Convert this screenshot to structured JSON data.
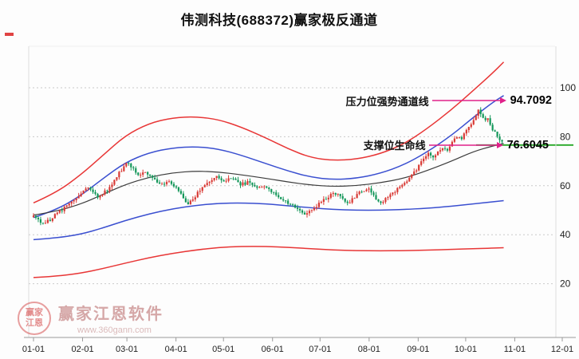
{
  "title": "伟测科技(688372)赢家极反通道",
  "annotations": {
    "resistance_label": "压力位强势通道线",
    "resistance_value": "94.7092",
    "support_label": "支撑位生命线",
    "support_value": "76.6045",
    "arrow_color": "#e0218a"
  },
  "watermark": {
    "brand": "赢家江恩软件",
    "url": "www.360gann.com",
    "logo_line1": "赢家",
    "logo_line2": "江恩"
  },
  "colors": {
    "up": "#d93a35",
    "down": "#14975a",
    "outer": "#e83636",
    "inner": "#3a4fd0",
    "life": "#3c3c3c",
    "support_line": "#27a827",
    "grid": "#c9c9c9",
    "axis": "#9a9a9a",
    "text": "#222222"
  },
  "chart_data": {
    "type": "candlestick",
    "title": "伟测科技(688372)赢家极反通道",
    "x_tick_labels": [
      "01-01",
      "02-01",
      "03-01",
      "04-01",
      "05-01",
      "06-01",
      "07-01",
      "08-01",
      "09-01",
      "10-01",
      "11-01",
      "12-01"
    ],
    "x_tick_cal_days": [
      0,
      31,
      59,
      90,
      120,
      151,
      181,
      212,
      243,
      273,
      304,
      334
    ],
    "x_axis_span": 334,
    "y_ticks": [
      100,
      80,
      60,
      40,
      20
    ],
    "ylim": [
      0,
      115
    ],
    "n_candles": 198,
    "cal_span": 296,
    "resistance_level": 94.7092,
    "support_level": 76.6045,
    "close_path": [
      [
        0,
        47.5
      ],
      [
        6,
        44.5
      ],
      [
        11,
        46.5
      ],
      [
        18,
        50
      ],
      [
        25,
        54
      ],
      [
        31,
        57.5
      ],
      [
        34,
        59
      ],
      [
        40,
        55.5
      ],
      [
        46,
        58
      ],
      [
        52,
        63
      ],
      [
        56,
        67
      ],
      [
        59,
        69.5
      ],
      [
        63,
        67
      ],
      [
        67,
        64.5
      ],
      [
        71,
        66
      ],
      [
        76,
        62.5
      ],
      [
        81,
        60.5
      ],
      [
        86,
        62
      ],
      [
        90,
        59.5
      ],
      [
        94,
        56
      ],
      [
        97,
        52.5
      ],
      [
        101,
        55
      ],
      [
        106,
        59
      ],
      [
        112,
        62.5
      ],
      [
        116,
        63.5
      ],
      [
        120,
        62
      ],
      [
        126,
        63
      ],
      [
        131,
        60.5
      ],
      [
        136,
        61.5
      ],
      [
        141,
        59
      ],
      [
        146,
        60
      ],
      [
        151,
        57
      ],
      [
        156,
        55
      ],
      [
        161,
        53
      ],
      [
        166,
        51
      ],
      [
        171,
        48.8
      ],
      [
        176,
        50.5
      ],
      [
        181,
        53
      ],
      [
        186,
        55.5
      ],
      [
        190,
        57.5
      ],
      [
        195,
        54.5
      ],
      [
        199,
        53
      ],
      [
        204,
        56
      ],
      [
        209,
        58.5
      ],
      [
        212,
        59
      ],
      [
        215,
        55.5
      ],
      [
        218,
        52.8
      ],
      [
        222,
        54.5
      ],
      [
        227,
        57
      ],
      [
        232,
        59.5
      ],
      [
        237,
        62.5
      ],
      [
        240,
        65
      ],
      [
        243,
        68
      ],
      [
        246,
        70.5
      ],
      [
        249,
        73
      ],
      [
        252,
        71
      ],
      [
        255,
        73.5
      ],
      [
        258,
        76
      ],
      [
        261,
        74.5
      ],
      [
        264,
        77.5
      ],
      [
        267,
        80.5
      ],
      [
        270,
        79
      ],
      [
        273,
        82
      ],
      [
        276,
        85
      ],
      [
        279,
        88.5
      ],
      [
        281,
        90.5
      ],
      [
        283,
        89
      ],
      [
        285,
        86.5
      ],
      [
        287,
        88
      ],
      [
        289,
        84.5
      ],
      [
        291,
        82
      ],
      [
        293,
        79.5
      ],
      [
        295,
        78
      ],
      [
        296,
        78.5
      ]
    ],
    "channel_lines": [
      {
        "name": "outer-upper",
        "color_key": "outer",
        "points": [
          [
            0,
            53
          ],
          [
            14,
            57
          ],
          [
            30,
            64.5
          ],
          [
            44,
            72.5
          ],
          [
            58,
            80.5
          ],
          [
            73,
            85.5
          ],
          [
            88,
            87.8
          ],
          [
            103,
            88.2
          ],
          [
            117,
            87
          ],
          [
            131,
            84
          ],
          [
            147,
            79.5
          ],
          [
            161,
            75
          ],
          [
            175,
            71.5
          ],
          [
            189,
            70.3
          ],
          [
            204,
            70.8
          ],
          [
            219,
            73
          ],
          [
            234,
            77
          ],
          [
            248,
            83
          ],
          [
            264,
            91
          ],
          [
            278,
            99
          ],
          [
            290,
            106
          ],
          [
            297,
            110.5
          ]
        ]
      },
      {
        "name": "strong-channel",
        "color_key": "inner",
        "points": [
          [
            0,
            47
          ],
          [
            14,
            50
          ],
          [
            30,
            56
          ],
          [
            44,
            63
          ],
          [
            58,
            69.5
          ],
          [
            73,
            73.5
          ],
          [
            88,
            75.5
          ],
          [
            103,
            76
          ],
          [
            117,
            75
          ],
          [
            131,
            72.5
          ],
          [
            147,
            69
          ],
          [
            161,
            66
          ],
          [
            175,
            63.5
          ],
          [
            189,
            62.5
          ],
          [
            204,
            63
          ],
          [
            219,
            65
          ],
          [
            234,
            68.5
          ],
          [
            248,
            73.5
          ],
          [
            264,
            80.5
          ],
          [
            278,
            88
          ],
          [
            290,
            94
          ],
          [
            297,
            96.8
          ]
        ]
      },
      {
        "name": "lifeline",
        "color_key": "life",
        "points": [
          [
            0,
            48
          ],
          [
            14,
            49.5
          ],
          [
            30,
            52.5
          ],
          [
            44,
            56.5
          ],
          [
            58,
            60.5
          ],
          [
            73,
            63.5
          ],
          [
            88,
            65.3
          ],
          [
            103,
            66
          ],
          [
            117,
            65.6
          ],
          [
            131,
            64.5
          ],
          [
            147,
            63
          ],
          [
            161,
            61.5
          ],
          [
            175,
            60.3
          ],
          [
            189,
            59.7
          ],
          [
            204,
            60
          ],
          [
            219,
            61.2
          ],
          [
            234,
            63
          ],
          [
            248,
            66
          ],
          [
            264,
            70
          ],
          [
            278,
            74
          ],
          [
            290,
            76.2
          ],
          [
            297,
            77.3
          ]
        ]
      },
      {
        "name": "weak-channel",
        "color_key": "inner",
        "points": [
          [
            0,
            38
          ],
          [
            14,
            38.6
          ],
          [
            30,
            40.2
          ],
          [
            44,
            42.8
          ],
          [
            58,
            45.8
          ],
          [
            73,
            48.5
          ],
          [
            88,
            50.6
          ],
          [
            103,
            52
          ],
          [
            117,
            52.8
          ],
          [
            131,
            53
          ],
          [
            147,
            52.6
          ],
          [
            161,
            51.8
          ],
          [
            175,
            51
          ],
          [
            189,
            50.3
          ],
          [
            204,
            50
          ],
          [
            219,
            50
          ],
          [
            234,
            50.3
          ],
          [
            248,
            50.8
          ],
          [
            264,
            51.6
          ],
          [
            278,
            52.6
          ],
          [
            290,
            53.4
          ],
          [
            297,
            53.9
          ]
        ]
      },
      {
        "name": "outer-lower",
        "color_key": "outer",
        "points": [
          [
            0,
            22.5
          ],
          [
            14,
            23
          ],
          [
            30,
            24.3
          ],
          [
            44,
            26.2
          ],
          [
            58,
            28.4
          ],
          [
            73,
            30.6
          ],
          [
            88,
            32.4
          ],
          [
            103,
            33.8
          ],
          [
            117,
            34.8
          ],
          [
            131,
            35.2
          ],
          [
            147,
            35.2
          ],
          [
            161,
            34.8
          ],
          [
            175,
            34.3
          ],
          [
            189,
            33.8
          ],
          [
            204,
            33.5
          ],
          [
            219,
            33.4
          ],
          [
            234,
            33.5
          ],
          [
            248,
            33.7
          ],
          [
            264,
            34
          ],
          [
            278,
            34.3
          ],
          [
            290,
            34.5
          ],
          [
            297,
            34.7
          ]
        ]
      }
    ]
  }
}
